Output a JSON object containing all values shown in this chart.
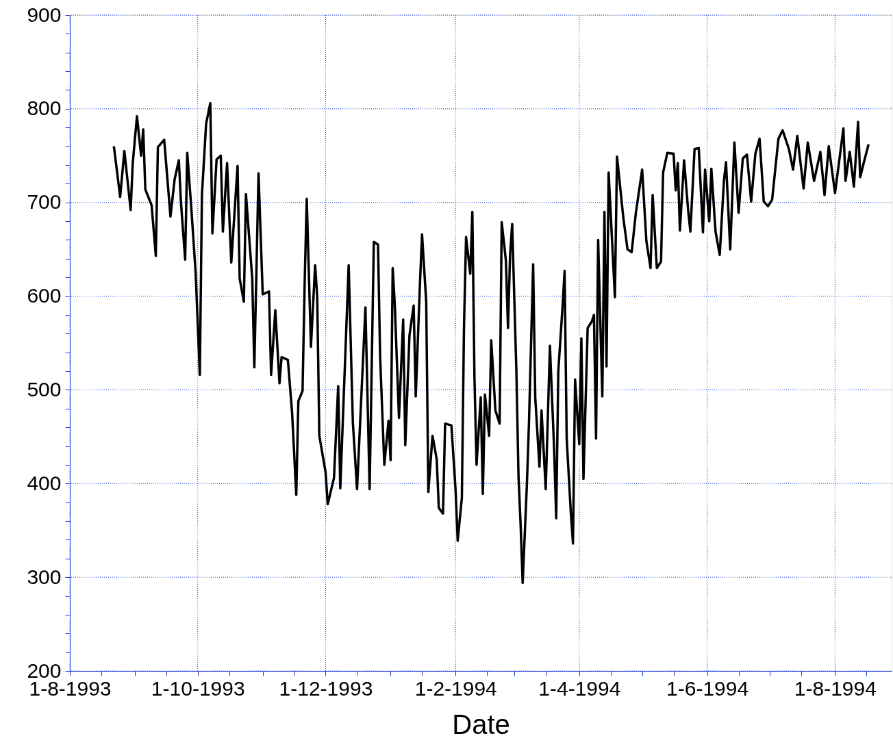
{
  "chart_data": {
    "type": "line",
    "xlabel": "Date",
    "grid": true,
    "marker": "none",
    "line_style": "solid",
    "xlim": [
      "1993-08-01",
      "1994-08-28"
    ],
    "xticks": [
      {
        "value": "1993-08-01",
        "label": "1-8-1993"
      },
      {
        "value": "1993-08-16",
        "label": null
      },
      {
        "value": "1993-09-01",
        "label": null
      },
      {
        "value": "1993-09-16",
        "label": null
      },
      {
        "value": "1993-10-01",
        "label": "1-10-1993"
      },
      {
        "value": "1993-10-16",
        "label": null
      },
      {
        "value": "1993-11-01",
        "label": null
      },
      {
        "value": "1993-11-16",
        "label": null
      },
      {
        "value": "1993-12-01",
        "label": "1-12-1993"
      },
      {
        "value": "1993-12-16",
        "label": null
      },
      {
        "value": "1994-01-01",
        "label": null
      },
      {
        "value": "1994-01-16",
        "label": null
      },
      {
        "value": "1994-02-01",
        "label": "1-2-1994"
      },
      {
        "value": "1994-02-16",
        "label": null
      },
      {
        "value": "1994-03-01",
        "label": null
      },
      {
        "value": "1994-03-16",
        "label": null
      },
      {
        "value": "1994-04-01",
        "label": "1-4-1994"
      },
      {
        "value": "1994-04-16",
        "label": null
      },
      {
        "value": "1994-05-01",
        "label": null
      },
      {
        "value": "1994-05-16",
        "label": null
      },
      {
        "value": "1994-06-01",
        "label": "1-6-1994"
      },
      {
        "value": "1994-06-16",
        "label": null
      },
      {
        "value": "1994-07-01",
        "label": null
      },
      {
        "value": "1994-07-16",
        "label": null
      },
      {
        "value": "1994-08-01",
        "label": "1-8-1994"
      },
      {
        "value": "1994-08-16",
        "label": null
      }
    ],
    "ylim": [
      200,
      900
    ],
    "yticks": [
      200,
      {
        "value": 220,
        "label": null
      },
      {
        "value": 240,
        "label": null
      },
      {
        "value": 260,
        "label": null
      },
      {
        "value": 280,
        "label": null
      },
      300,
      {
        "value": 320,
        "label": null
      },
      {
        "value": 340,
        "label": null
      },
      {
        "value": 360,
        "label": null
      },
      {
        "value": 380,
        "label": null
      },
      400,
      {
        "value": 420,
        "label": null
      },
      {
        "value": 440,
        "label": null
      },
      {
        "value": 460,
        "label": null
      },
      {
        "value": 480,
        "label": null
      },
      500,
      {
        "value": 520,
        "label": null
      },
      {
        "value": 540,
        "label": null
      },
      {
        "value": 560,
        "label": null
      },
      {
        "value": 580,
        "label": null
      },
      600,
      {
        "value": 620,
        "label": null
      },
      {
        "value": 640,
        "label": null
      },
      {
        "value": 660,
        "label": null
      },
      {
        "value": 680,
        "label": null
      },
      700,
      {
        "value": 720,
        "label": null
      },
      {
        "value": 740,
        "label": null
      },
      {
        "value": 760,
        "label": null
      },
      {
        "value": 780,
        "label": null
      },
      800,
      {
        "value": 820,
        "label": null
      },
      {
        "value": 840,
        "label": null
      },
      {
        "value": 860,
        "label": null
      },
      {
        "value": 880,
        "label": null
      },
      900
    ],
    "series": [
      {
        "color": "#000000",
        "x": [
          "1993-08-22",
          "1993-08-25",
          "1993-08-27",
          "1993-08-30",
          "1993-08-31",
          "1993-09-02",
          "1993-09-04",
          "1993-09-05",
          "1993-09-06",
          "1993-09-09",
          "1993-09-11",
          "1993-09-12",
          "1993-09-15",
          "1993-09-18",
          "1993-09-20",
          "1993-09-22",
          "1993-09-23",
          "1993-09-25",
          "1993-09-26",
          "1993-09-28",
          "1993-09-30",
          "1993-10-02",
          "1993-10-03",
          "1993-10-05",
          "1993-10-07",
          "1993-10-08",
          "1993-10-10",
          "1993-10-12",
          "1993-10-13",
          "1993-10-15",
          "1993-10-17",
          "1993-10-20",
          "1993-10-21",
          "1993-10-23",
          "1993-10-24",
          "1993-10-27",
          "1993-10-28",
          "1993-10-30",
          "1993-11-01",
          "1993-11-04",
          "1993-11-05",
          "1993-11-07",
          "1993-11-09",
          "1993-11-10",
          "1993-11-13",
          "1993-11-15",
          "1993-11-17",
          "1993-11-18",
          "1993-11-20",
          "1993-11-21",
          "1993-11-22",
          "1993-11-24",
          "1993-11-26",
          "1993-11-27",
          "1993-11-28",
          "1993-12-01",
          "1993-12-02",
          "1993-12-05",
          "1993-12-07",
          "1993-12-08",
          "1993-12-12",
          "1993-12-14",
          "1993-12-16",
          "1993-12-20",
          "1993-12-22",
          "1993-12-24",
          "1993-12-26",
          "1993-12-27",
          "1993-12-29",
          "1993-12-31",
          "1994-01-01",
          "1994-01-02",
          "1994-01-03",
          "1994-01-05",
          "1994-01-07",
          "1994-01-08",
          "1994-01-10",
          "1994-01-12",
          "1994-01-13",
          "1994-01-15",
          "1994-01-16",
          "1994-01-18",
          "1994-01-19",
          "1994-01-21",
          "1994-01-23",
          "1994-01-24",
          "1994-01-26",
          "1994-01-27",
          "1994-01-30",
          "1994-02-01",
          "1994-02-02",
          "1994-02-04",
          "1994-02-05",
          "1994-02-06",
          "1994-02-08",
          "1994-02-09",
          "1994-02-10",
          "1994-02-11",
          "1994-02-13",
          "1994-02-14",
          "1994-02-15",
          "1994-02-17",
          "1994-02-18",
          "1994-02-20",
          "1994-02-22",
          "1994-02-23",
          "1994-02-25",
          "1994-02-26",
          "1994-02-27",
          "1994-02-28",
          "1994-03-02",
          "1994-03-03",
          "1994-03-04",
          "1994-03-05",
          "1994-03-07",
          "1994-03-08",
          "1994-03-10",
          "1994-03-11",
          "1994-03-13",
          "1994-03-14",
          "1994-03-16",
          "1994-03-18",
          "1994-03-20",
          "1994-03-21",
          "1994-03-22",
          "1994-03-24",
          "1994-03-25",
          "1994-03-26",
          "1994-03-28",
          "1994-03-29",
          "1994-03-30",
          "1994-04-01",
          "1994-04-02",
          "1994-04-03",
          "1994-04-05",
          "1994-04-07",
          "1994-04-08",
          "1994-04-09",
          "1994-04-10",
          "1994-04-12",
          "1994-04-13",
          "1994-04-14",
          "1994-04-15",
          "1994-04-18",
          "1994-04-19",
          "1994-04-22",
          "1994-04-24",
          "1994-04-26",
          "1994-04-28",
          "1994-05-01",
          "1994-05-03",
          "1994-05-05",
          "1994-05-06",
          "1994-05-08",
          "1994-05-10",
          "1994-05-11",
          "1994-05-13",
          "1994-05-16",
          "1994-05-17",
          "1994-05-18",
          "1994-05-19",
          "1994-05-21",
          "1994-05-23",
          "1994-05-24",
          "1994-05-26",
          "1994-05-28",
          "1994-05-30",
          "1994-05-31",
          "1994-06-02",
          "1994-06-03",
          "1994-06-05",
          "1994-06-07",
          "1994-06-09",
          "1994-06-10",
          "1994-06-12",
          "1994-06-14",
          "1994-06-16",
          "1994-06-18",
          "1994-06-20",
          "1994-06-22",
          "1994-06-24",
          "1994-06-26",
          "1994-06-28",
          "1994-06-30",
          "1994-07-02",
          "1994-07-05",
          "1994-07-07",
          "1994-07-10",
          "1994-07-12",
          "1994-07-14",
          "1994-07-17",
          "1994-07-19",
          "1994-07-22",
          "1994-07-25",
          "1994-07-27",
          "1994-07-29",
          "1994-08-01",
          "1994-08-05",
          "1994-08-06",
          "1994-08-08",
          "1994-08-10",
          "1994-08-12",
          "1994-08-13",
          "1994-08-15",
          "1994-08-17"
        ],
        "values": [
          760,
          706,
          755,
          692,
          742,
          792,
          750,
          778,
          714,
          697,
          643,
          759,
          767,
          685,
          725,
          745,
          700,
          639,
          753,
          692,
          625,
          516,
          708,
          784,
          806,
          667,
          746,
          750,
          669,
          742,
          636,
          739,
          619,
          594,
          709,
          619,
          524,
          731,
          602,
          605,
          516,
          585,
          507,
          535,
          532,
          476,
          388,
          488,
          499,
          613,
          704,
          546,
          633,
          599,
          451,
          412,
          378,
          406,
          504,
          395,
          633,
          465,
          394,
          588,
          394,
          658,
          655,
          536,
          420,
          467,
          425,
          630,
          591,
          470,
          575,
          441,
          558,
          590,
          493,
          613,
          666,
          594,
          391,
          451,
          426,
          374,
          368,
          464,
          462,
          393,
          339,
          385,
          566,
          663,
          624,
          690,
          514,
          420,
          492,
          389,
          495,
          451,
          553,
          478,
          464,
          679,
          638,
          566,
          644,
          677,
          520,
          409,
          357,
          294,
          398,
          464,
          634,
          492,
          418,
          478,
          394,
          547,
          437,
          363,
          520,
          588,
          627,
          448,
          368,
          336,
          511,
          442,
          555,
          405,
          566,
          573,
          580,
          448,
          660,
          493,
          690,
          525,
          732,
          599,
          749,
          684,
          650,
          647,
          689,
          735,
          659,
          630,
          708,
          630,
          637,
          732,
          753,
          752,
          713,
          742,
          670,
          745,
          690,
          669,
          757,
          758,
          668,
          735,
          680,
          736,
          669,
          644,
          723,
          743,
          650,
          764,
          689,
          747,
          751,
          701,
          752,
          768,
          701,
          696,
          703,
          768,
          777,
          757,
          735,
          771,
          715,
          764,
          723,
          754,
          708,
          760,
          710,
          779,
          723,
          754,
          717,
          786,
          727,
          745,
          762
        ]
      }
    ]
  }
}
